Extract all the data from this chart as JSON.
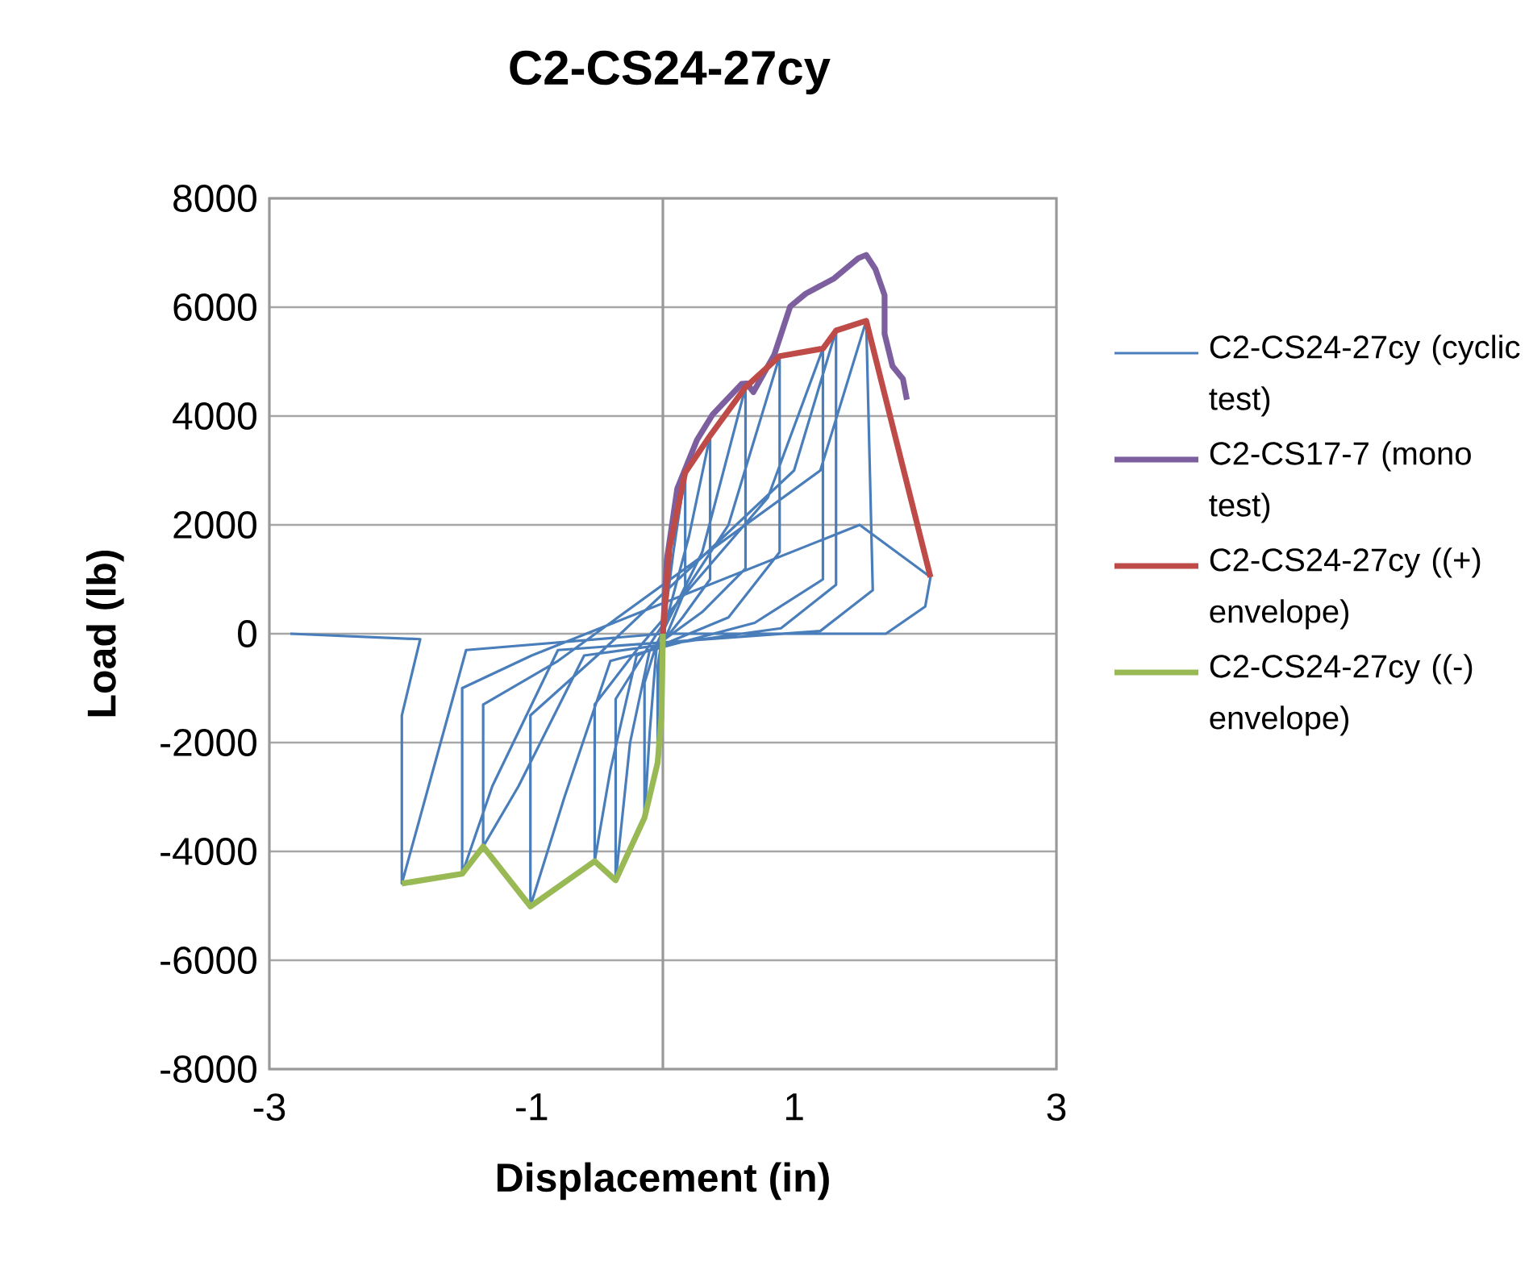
{
  "chart_data": {
    "type": "line",
    "title": "C2-CS24-27cy",
    "xlabel": "Displacement (in)",
    "ylabel": "Load (lb)",
    "xlim": [
      -3,
      3
    ],
    "xticks": [
      -3,
      -1,
      1,
      3
    ],
    "ylim": [
      -8000,
      8000
    ],
    "yticks": [
      -8000,
      -6000,
      -4000,
      -2000,
      0,
      2000,
      4000,
      6000,
      8000
    ],
    "grid": "y",
    "legend": "right",
    "marker": "none",
    "line_style": "solid",
    "series": [
      {
        "name": "C2-CS24-27cy (cyclic test)",
        "color": "#4a7ebb",
        "x": [
          0,
          0.08,
          0.17,
          0.17,
          0.05,
          -0.02,
          -0.04,
          -0.04,
          0,
          0.2,
          0.36,
          0.36,
          0.15,
          -0.05,
          -0.1,
          -0.14,
          -0.14,
          -0.05,
          0.3,
          0.63,
          0.63,
          0.3,
          -0.1,
          -0.25,
          -0.36,
          -0.36,
          -0.1,
          0.5,
          0.89,
          0.89,
          0.5,
          -0.2,
          -0.4,
          -0.52,
          -0.52,
          -0.2,
          0.8,
          1.22,
          1.22,
          0.7,
          -0.4,
          -0.75,
          -1.01,
          -1.01,
          -0.5,
          1.0,
          1.32,
          1.32,
          0.9,
          -0.6,
          -1.1,
          -1.37,
          -1.37,
          -0.8,
          1.2,
          1.55,
          1.6,
          1.2,
          -0.8,
          -1.3,
          -1.53,
          -1.53,
          -1.0,
          1.5,
          2.04,
          2.0,
          1.7,
          0,
          -1.5,
          -1.99,
          -1.99,
          -1.85,
          -2.84
        ],
        "values": [
          0,
          1500,
          2960,
          800,
          100,
          -300,
          -2370,
          -600,
          0,
          1800,
          3640,
          1000,
          300,
          -300,
          -1800,
          -3380,
          -900,
          -200,
          1500,
          4530,
          1200,
          400,
          -300,
          -2000,
          -4530,
          -1200,
          -200,
          2000,
          5100,
          1500,
          300,
          -400,
          -2500,
          -4180,
          -1300,
          -300,
          2500,
          5240,
          1000,
          200,
          -500,
          -3000,
          -5010,
          -1500,
          -400,
          3000,
          5570,
          900,
          100,
          -400,
          -2800,
          -3910,
          -1300,
          -500,
          3000,
          5750,
          800,
          50,
          -300,
          -2800,
          -4410,
          -1000,
          -400,
          2000,
          1040,
          500,
          0,
          0,
          -300,
          -4590,
          -1500,
          -100,
          0
        ]
      },
      {
        "name": "C2-CS17-7 (mono test)",
        "color": "#7d5fa0",
        "x": [
          0,
          0.03,
          0.11,
          0.26,
          0.38,
          0.6,
          0.64,
          0.69,
          0.85,
          0.97,
          1.09,
          1.3,
          1.49,
          1.55,
          1.62,
          1.69,
          1.69,
          1.75,
          1.83,
          1.86
        ],
        "values": [
          0,
          1360,
          2670,
          3560,
          4030,
          4590,
          4600,
          4440,
          5130,
          6010,
          6250,
          6520,
          6900,
          6960,
          6700,
          6220,
          5510,
          4920,
          4680,
          4300
        ]
      },
      {
        "name": "C2-CS24-27cy ((+) envelope)",
        "color": "#be4b48",
        "x": [
          0,
          0.05,
          0.17,
          0.36,
          0.63,
          0.89,
          1.22,
          1.32,
          1.55,
          2.04
        ],
        "values": [
          0,
          1570,
          2960,
          3640,
          4530,
          5100,
          5240,
          5570,
          5750,
          1040
        ]
      },
      {
        "name": "C2-CS24-27cy ((-) envelope)",
        "color": "#98b954",
        "x": [
          0,
          -0.01,
          -0.04,
          -0.14,
          -0.36,
          -0.52,
          -1.01,
          -1.37,
          -1.53,
          -1.99
        ],
        "values": [
          0,
          -1500,
          -2370,
          -3380,
          -4530,
          -4180,
          -5010,
          -3910,
          -4410,
          -4590
        ]
      }
    ]
  }
}
